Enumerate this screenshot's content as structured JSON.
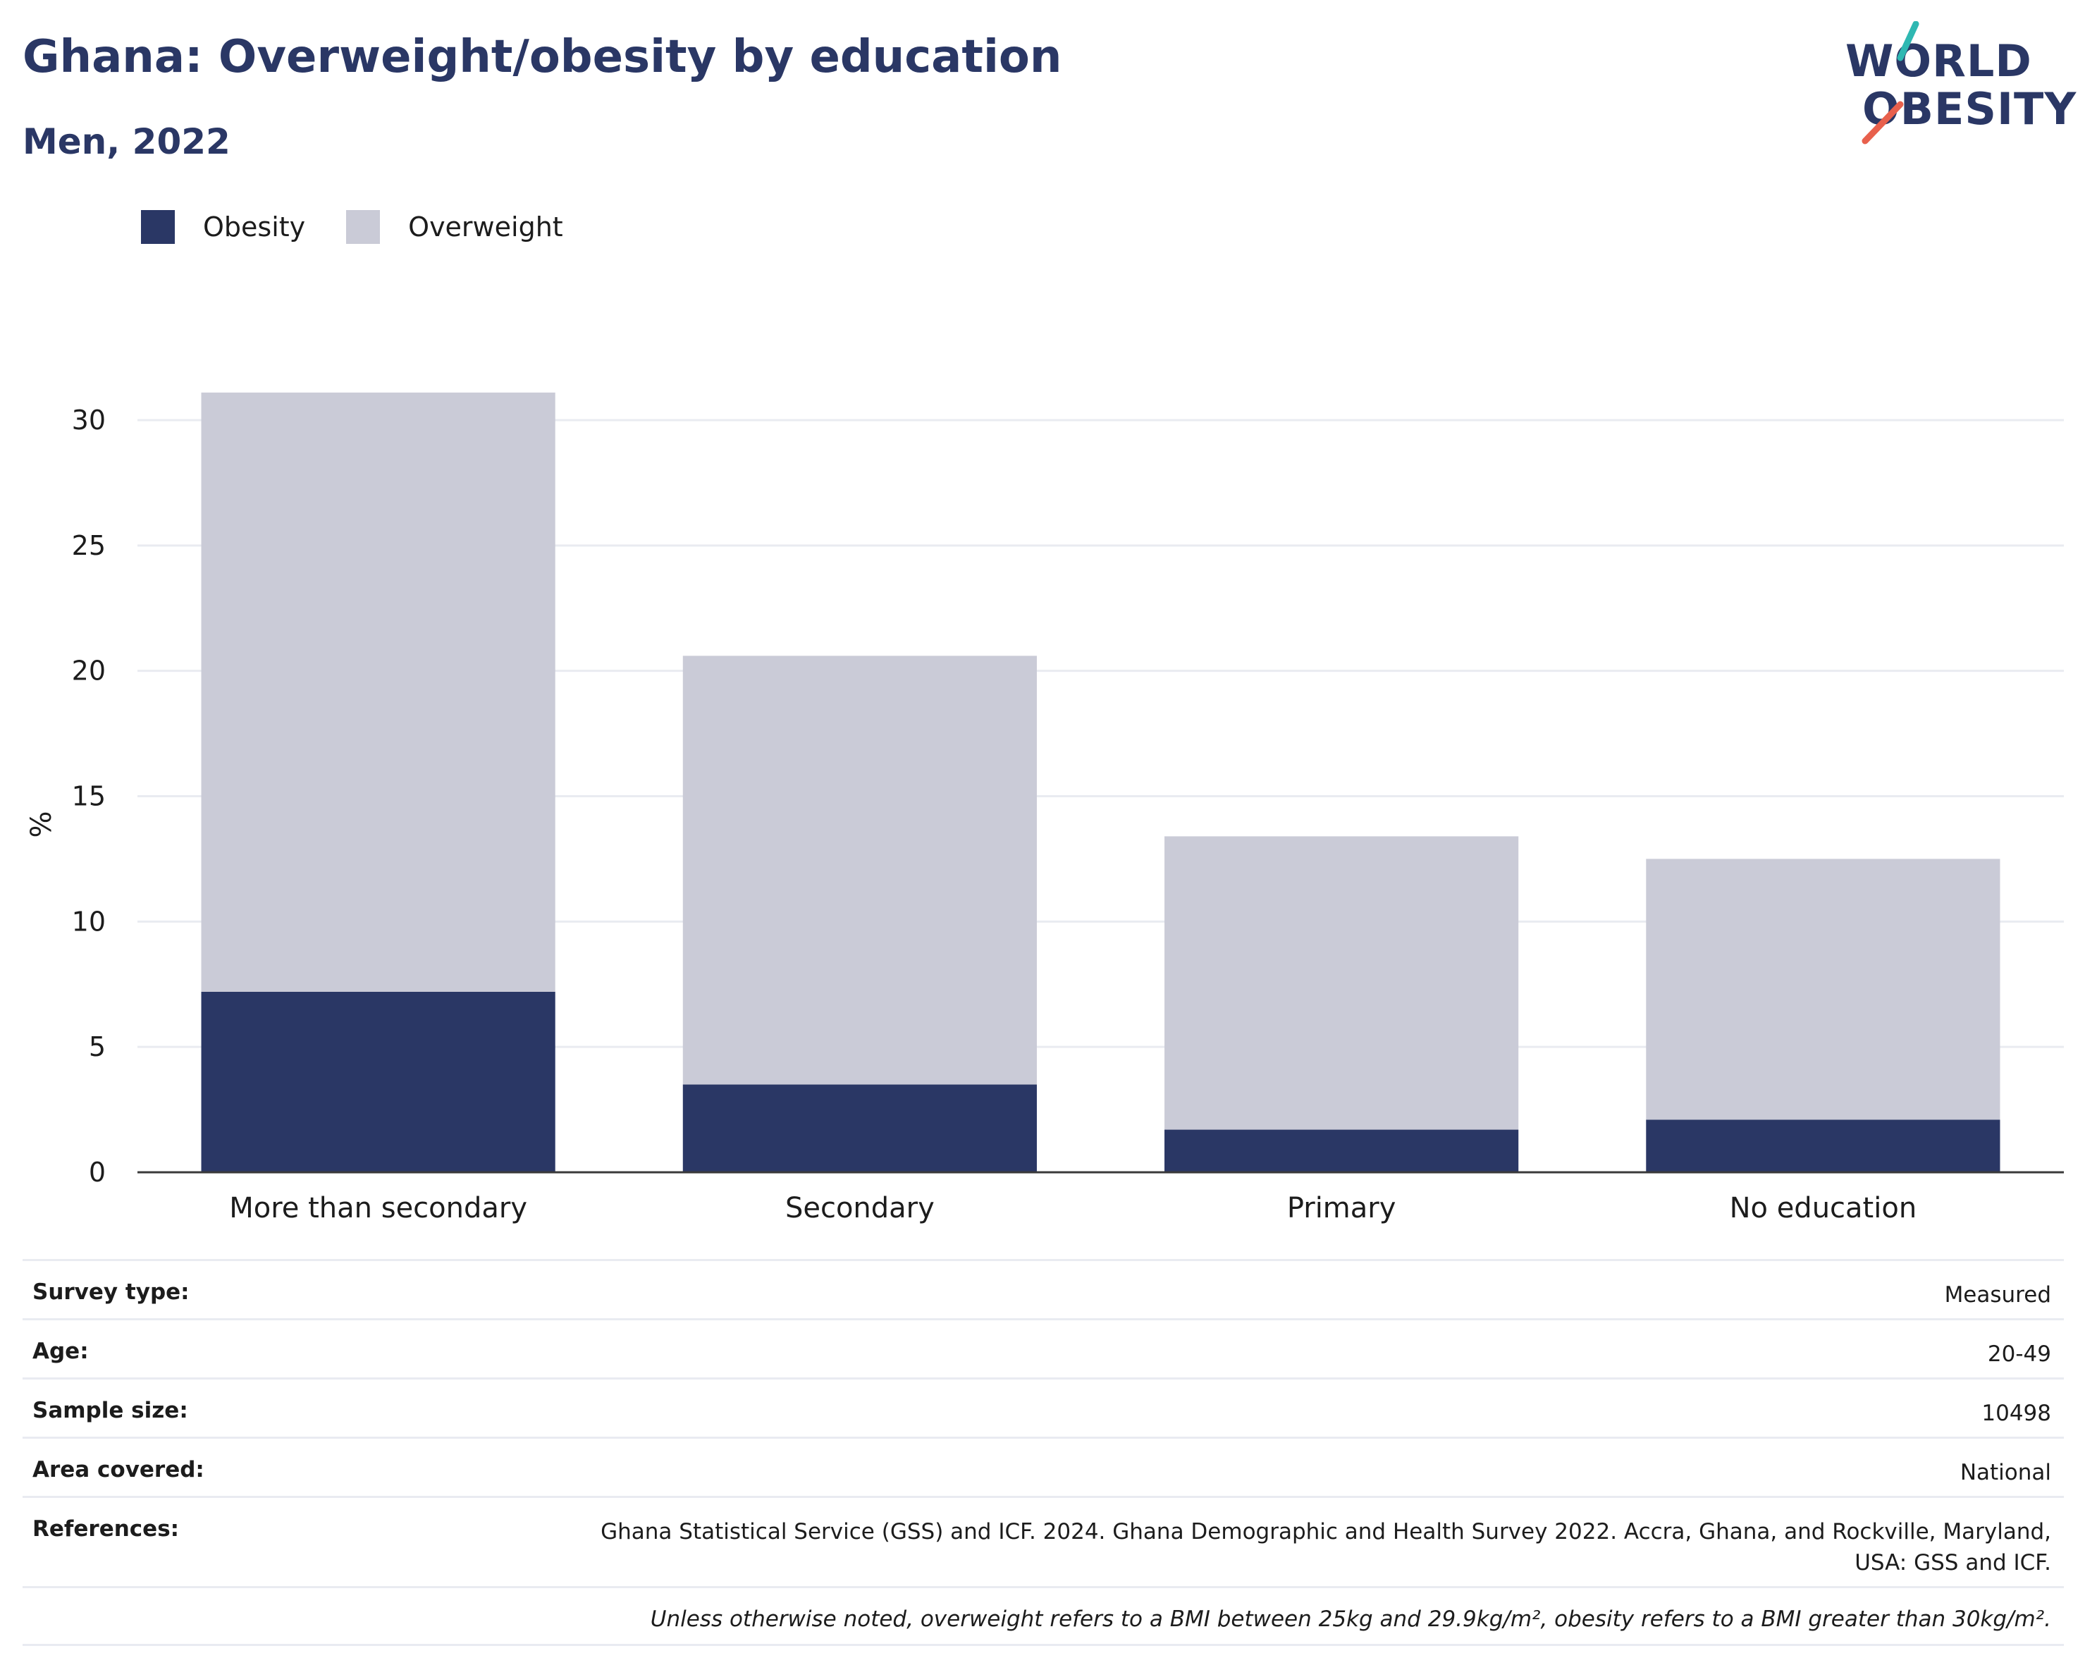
{
  "header": {
    "title": "Ghana: Overweight/obesity by education",
    "subtitle": "Men, 2022"
  },
  "logo": {
    "line1": "WORLD",
    "line2": "OBESITY",
    "colors": {
      "teal": "#2fb8b2",
      "coral": "#e8604c",
      "navy": "#2a3765"
    }
  },
  "chart_data": {
    "type": "bar",
    "stacked": true,
    "categories": [
      "More than secondary",
      "Secondary",
      "Primary",
      "No education"
    ],
    "series": [
      {
        "name": "Obesity",
        "color": "#2a3765",
        "values": [
          7.2,
          3.5,
          1.7,
          2.1
        ]
      },
      {
        "name": "Overweight",
        "color": "#cacbd7",
        "values": [
          23.9,
          17.1,
          11.7,
          10.4
        ]
      }
    ],
    "totals": [
      31.1,
      20.6,
      13.4,
      12.5
    ],
    "ylabel": "%",
    "ylim": [
      0,
      31.5
    ],
    "yticks": [
      0,
      5,
      10,
      15,
      20,
      25,
      30
    ],
    "grid": true,
    "legend_position": "top-left"
  },
  "meta": {
    "rows": [
      {
        "key": "Survey type:",
        "value": "Measured"
      },
      {
        "key": "Age:",
        "value": "20-49"
      },
      {
        "key": "Sample size:",
        "value": "10498"
      },
      {
        "key": "Area covered:",
        "value": "National"
      },
      {
        "key": "References:",
        "value": "Ghana Statistical Service (GSS) and ICF. 2024. Ghana Demographic and Health Survey 2022. Accra, Ghana, and Rockville, Maryland, USA: GSS and ICF."
      }
    ],
    "note": "Unless otherwise noted, overweight refers to a BMI between 25kg and 29.9kg/m², obesity refers to a BMI greater than 30kg/m²."
  }
}
